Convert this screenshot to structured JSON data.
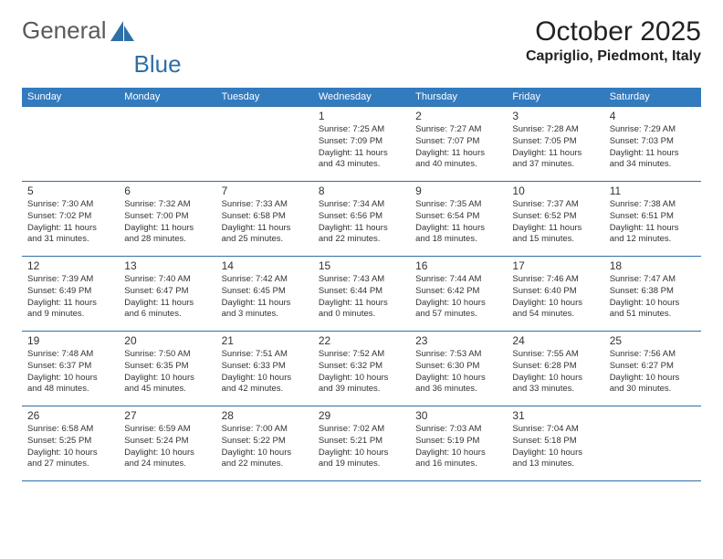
{
  "logo": {
    "text_gray": "General",
    "text_blue": "Blue",
    "shape_color": "#2f6fa7"
  },
  "title": "October 2025",
  "location": "Capriglio, Piedmont, Italy",
  "colors": {
    "header_bg": "#327bbf",
    "header_text": "#ffffff",
    "border": "#2f6fa7",
    "text": "#333333",
    "bg": "#ffffff"
  },
  "day_headers": [
    "Sunday",
    "Monday",
    "Tuesday",
    "Wednesday",
    "Thursday",
    "Friday",
    "Saturday"
  ],
  "weeks": [
    [
      {
        "day": "",
        "empty": true
      },
      {
        "day": "",
        "empty": true
      },
      {
        "day": "",
        "empty": true
      },
      {
        "day": "1",
        "sunrise": "Sunrise: 7:25 AM",
        "sunset": "Sunset: 7:09 PM",
        "daylight": "Daylight: 11 hours and 43 minutes."
      },
      {
        "day": "2",
        "sunrise": "Sunrise: 7:27 AM",
        "sunset": "Sunset: 7:07 PM",
        "daylight": "Daylight: 11 hours and 40 minutes."
      },
      {
        "day": "3",
        "sunrise": "Sunrise: 7:28 AM",
        "sunset": "Sunset: 7:05 PM",
        "daylight": "Daylight: 11 hours and 37 minutes."
      },
      {
        "day": "4",
        "sunrise": "Sunrise: 7:29 AM",
        "sunset": "Sunset: 7:03 PM",
        "daylight": "Daylight: 11 hours and 34 minutes."
      }
    ],
    [
      {
        "day": "5",
        "sunrise": "Sunrise: 7:30 AM",
        "sunset": "Sunset: 7:02 PM",
        "daylight": "Daylight: 11 hours and 31 minutes."
      },
      {
        "day": "6",
        "sunrise": "Sunrise: 7:32 AM",
        "sunset": "Sunset: 7:00 PM",
        "daylight": "Daylight: 11 hours and 28 minutes."
      },
      {
        "day": "7",
        "sunrise": "Sunrise: 7:33 AM",
        "sunset": "Sunset: 6:58 PM",
        "daylight": "Daylight: 11 hours and 25 minutes."
      },
      {
        "day": "8",
        "sunrise": "Sunrise: 7:34 AM",
        "sunset": "Sunset: 6:56 PM",
        "daylight": "Daylight: 11 hours and 22 minutes."
      },
      {
        "day": "9",
        "sunrise": "Sunrise: 7:35 AM",
        "sunset": "Sunset: 6:54 PM",
        "daylight": "Daylight: 11 hours and 18 minutes."
      },
      {
        "day": "10",
        "sunrise": "Sunrise: 7:37 AM",
        "sunset": "Sunset: 6:52 PM",
        "daylight": "Daylight: 11 hours and 15 minutes."
      },
      {
        "day": "11",
        "sunrise": "Sunrise: 7:38 AM",
        "sunset": "Sunset: 6:51 PM",
        "daylight": "Daylight: 11 hours and 12 minutes."
      }
    ],
    [
      {
        "day": "12",
        "sunrise": "Sunrise: 7:39 AM",
        "sunset": "Sunset: 6:49 PM",
        "daylight": "Daylight: 11 hours and 9 minutes."
      },
      {
        "day": "13",
        "sunrise": "Sunrise: 7:40 AM",
        "sunset": "Sunset: 6:47 PM",
        "daylight": "Daylight: 11 hours and 6 minutes."
      },
      {
        "day": "14",
        "sunrise": "Sunrise: 7:42 AM",
        "sunset": "Sunset: 6:45 PM",
        "daylight": "Daylight: 11 hours and 3 minutes."
      },
      {
        "day": "15",
        "sunrise": "Sunrise: 7:43 AM",
        "sunset": "Sunset: 6:44 PM",
        "daylight": "Daylight: 11 hours and 0 minutes."
      },
      {
        "day": "16",
        "sunrise": "Sunrise: 7:44 AM",
        "sunset": "Sunset: 6:42 PM",
        "daylight": "Daylight: 10 hours and 57 minutes."
      },
      {
        "day": "17",
        "sunrise": "Sunrise: 7:46 AM",
        "sunset": "Sunset: 6:40 PM",
        "daylight": "Daylight: 10 hours and 54 minutes."
      },
      {
        "day": "18",
        "sunrise": "Sunrise: 7:47 AM",
        "sunset": "Sunset: 6:38 PM",
        "daylight": "Daylight: 10 hours and 51 minutes."
      }
    ],
    [
      {
        "day": "19",
        "sunrise": "Sunrise: 7:48 AM",
        "sunset": "Sunset: 6:37 PM",
        "daylight": "Daylight: 10 hours and 48 minutes."
      },
      {
        "day": "20",
        "sunrise": "Sunrise: 7:50 AM",
        "sunset": "Sunset: 6:35 PM",
        "daylight": "Daylight: 10 hours and 45 minutes."
      },
      {
        "day": "21",
        "sunrise": "Sunrise: 7:51 AM",
        "sunset": "Sunset: 6:33 PM",
        "daylight": "Daylight: 10 hours and 42 minutes."
      },
      {
        "day": "22",
        "sunrise": "Sunrise: 7:52 AM",
        "sunset": "Sunset: 6:32 PM",
        "daylight": "Daylight: 10 hours and 39 minutes."
      },
      {
        "day": "23",
        "sunrise": "Sunrise: 7:53 AM",
        "sunset": "Sunset: 6:30 PM",
        "daylight": "Daylight: 10 hours and 36 minutes."
      },
      {
        "day": "24",
        "sunrise": "Sunrise: 7:55 AM",
        "sunset": "Sunset: 6:28 PM",
        "daylight": "Daylight: 10 hours and 33 minutes."
      },
      {
        "day": "25",
        "sunrise": "Sunrise: 7:56 AM",
        "sunset": "Sunset: 6:27 PM",
        "daylight": "Daylight: 10 hours and 30 minutes."
      }
    ],
    [
      {
        "day": "26",
        "sunrise": "Sunrise: 6:58 AM",
        "sunset": "Sunset: 5:25 PM",
        "daylight": "Daylight: 10 hours and 27 minutes."
      },
      {
        "day": "27",
        "sunrise": "Sunrise: 6:59 AM",
        "sunset": "Sunset: 5:24 PM",
        "daylight": "Daylight: 10 hours and 24 minutes."
      },
      {
        "day": "28",
        "sunrise": "Sunrise: 7:00 AM",
        "sunset": "Sunset: 5:22 PM",
        "daylight": "Daylight: 10 hours and 22 minutes."
      },
      {
        "day": "29",
        "sunrise": "Sunrise: 7:02 AM",
        "sunset": "Sunset: 5:21 PM",
        "daylight": "Daylight: 10 hours and 19 minutes."
      },
      {
        "day": "30",
        "sunrise": "Sunrise: 7:03 AM",
        "sunset": "Sunset: 5:19 PM",
        "daylight": "Daylight: 10 hours and 16 minutes."
      },
      {
        "day": "31",
        "sunrise": "Sunrise: 7:04 AM",
        "sunset": "Sunset: 5:18 PM",
        "daylight": "Daylight: 10 hours and 13 minutes."
      },
      {
        "day": "",
        "empty": true
      }
    ]
  ]
}
